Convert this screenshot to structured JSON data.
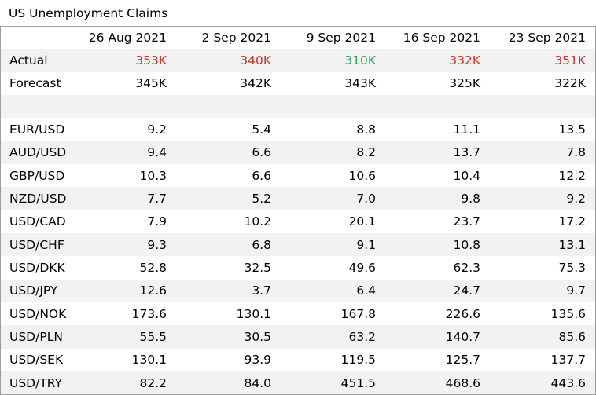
{
  "title": "US Unemployment Claims",
  "columns": [
    "26 Aug 2021",
    "2 Sep 2021",
    "9 Sep 2021",
    "16 Sep 2021",
    "23 Sep 2021"
  ],
  "colors": {
    "worse": "#c0392b",
    "better": "#2e9e5b",
    "shade": "#f2f2f2"
  },
  "actual": {
    "label": "Actual",
    "values": [
      "353K",
      "340K",
      "310K",
      "332K",
      "351K"
    ],
    "tone": [
      "worse",
      "worse",
      "better",
      "worse",
      "worse"
    ]
  },
  "forecast": {
    "label": "Forecast",
    "values": [
      "345K",
      "342K",
      "343K",
      "325K",
      "322K"
    ]
  },
  "pairs": [
    {
      "label": "EUR/USD",
      "values": [
        "9.2",
        "5.4",
        "8.8",
        "11.1",
        "13.5"
      ]
    },
    {
      "label": "AUD/USD",
      "values": [
        "9.4",
        "6.6",
        "8.2",
        "13.7",
        "7.8"
      ]
    },
    {
      "label": "GBP/USD",
      "values": [
        "10.3",
        "6.6",
        "10.6",
        "10.4",
        "12.2"
      ]
    },
    {
      "label": "NZD/USD",
      "values": [
        "7.7",
        "5.2",
        "7.0",
        "9.8",
        "9.2"
      ]
    },
    {
      "label": "USD/CAD",
      "values": [
        "7.9",
        "10.2",
        "20.1",
        "23.7",
        "17.2"
      ]
    },
    {
      "label": "USD/CHF",
      "values": [
        "9.3",
        "6.8",
        "9.1",
        "10.8",
        "13.1"
      ]
    },
    {
      "label": "USD/DKK",
      "values": [
        "52.8",
        "32.5",
        "49.6",
        "62.3",
        "75.3"
      ]
    },
    {
      "label": "USD/JPY",
      "values": [
        "12.6",
        "3.7",
        "6.4",
        "24.7",
        "9.7"
      ]
    },
    {
      "label": "USD/NOK",
      "values": [
        "173.6",
        "130.1",
        "167.8",
        "226.6",
        "135.6"
      ]
    },
    {
      "label": "USD/PLN",
      "values": [
        "55.5",
        "30.5",
        "63.2",
        "140.7",
        "85.6"
      ]
    },
    {
      "label": "USD/SEK",
      "values": [
        "130.1",
        "93.9",
        "119.5",
        "125.7",
        "137.7"
      ]
    },
    {
      "label": "USD/TRY",
      "values": [
        "82.2",
        "84.0",
        "451.5",
        "468.6",
        "443.6"
      ]
    }
  ]
}
